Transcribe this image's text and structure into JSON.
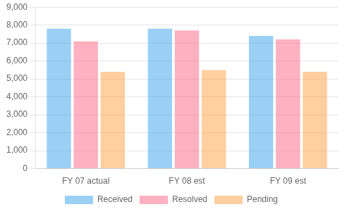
{
  "chart_data": {
    "type": "bar",
    "categories": [
      "FY 07 actual",
      "FY 08 est",
      "FY 09 est"
    ],
    "series": [
      {
        "name": "Received",
        "values": [
          7800,
          7800,
          7400
        ]
      },
      {
        "name": "Resolved",
        "values": [
          7100,
          7700,
          7200
        ]
      },
      {
        "name": "Pending",
        "values": [
          5400,
          5500,
          5400
        ]
      }
    ],
    "ylim": [
      0,
      9000
    ],
    "yticks": [
      0,
      {
        "value": 1000,
        "label": "1,000"
      },
      {
        "value": 2000,
        "label": "2,000"
      },
      {
        "value": 3000,
        "label": "3,000"
      },
      {
        "value": 4000,
        "label": "4,000"
      },
      {
        "value": 5000,
        "label": "5,000"
      },
      {
        "value": 6000,
        "label": "6,000"
      },
      {
        "value": 7000,
        "label": "7,000"
      },
      {
        "value": 8000,
        "label": "8,000"
      },
      {
        "value": 9000,
        "label": "9,000"
      }
    ],
    "grid": true,
    "legend": "bottom"
  }
}
